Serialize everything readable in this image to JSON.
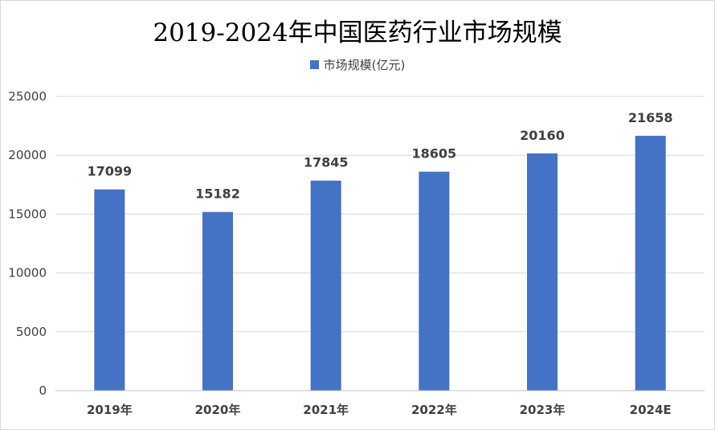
{
  "chart_data": {
    "type": "bar",
    "title": "2019-2024年中国医药行业市场规模",
    "categories": [
      "2019年",
      "2020年",
      "2021年",
      "2022年",
      "2023年",
      "2024E"
    ],
    "series": [
      {
        "name": "市场规模(亿元)",
        "values": [
          17099,
          15182,
          17845,
          18605,
          20160,
          21658
        ],
        "color": "#4472c4"
      }
    ],
    "ylim": [
      0,
      25000
    ],
    "yticks": [
      0,
      5000,
      10000,
      15000,
      20000,
      25000
    ],
    "grid": true,
    "legend_position": "top",
    "xlabel": "",
    "ylabel": ""
  }
}
